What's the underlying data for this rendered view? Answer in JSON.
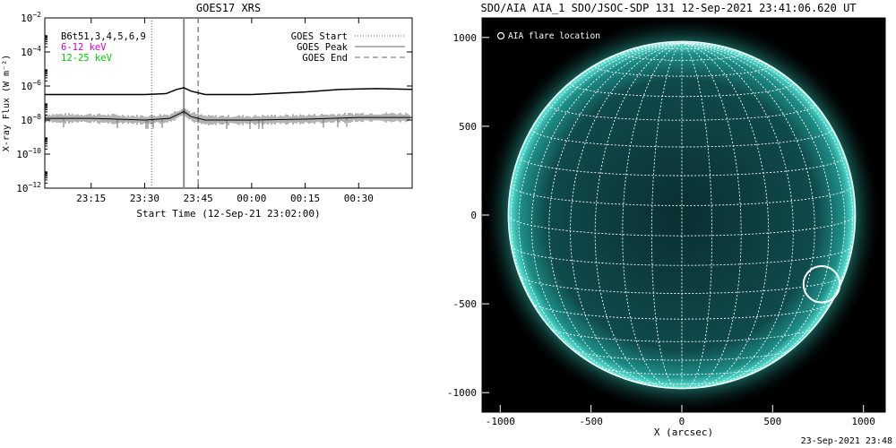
{
  "timestamp": "23-Sep-2021 23:48",
  "chart_data": [
    {
      "type": "line",
      "title": "GOES17 XRS",
      "xlabel": "Start Time (12-Sep-21 23:02:00)",
      "ylabel": "X-ray Flux (W m⁻²)",
      "y_scale": "log",
      "ylim_exp": [
        -12,
        -2
      ],
      "y_tick_exps": [
        -12,
        -10,
        -8,
        -6,
        -4,
        -2
      ],
      "x_ticks": [
        "23:15",
        "23:30",
        "23:45",
        "00:00",
        "00:15",
        "00:30"
      ],
      "legend_text": [
        "B6t51,3,4,5,6,9",
        "6-12 keV",
        "12-25 keV"
      ],
      "legend_colors": [
        "#000000",
        "#cc00cc",
        "#00cc00"
      ],
      "markers": [
        {
          "name": "GOES Start",
          "time": "23:32",
          "style": "dotted"
        },
        {
          "name": "GOES Peak",
          "time": "23:41",
          "style": "solid"
        },
        {
          "name": "GOES End",
          "time": "23:45",
          "style": "dashed"
        }
      ],
      "series": [
        {
          "name": "",
          "x": [
            "23:02",
            "23:15",
            "23:30",
            "23:36",
            "23:39",
            "23:41",
            "23:43",
            "23:47",
            "00:00",
            "00:15",
            "00:25",
            "00:35",
            "00:45"
          ],
          "y_exp": [
            -6.5,
            -6.5,
            -6.5,
            -6.45,
            -6.2,
            -6.1,
            -6.3,
            -6.5,
            -6.5,
            -6.35,
            -6.2,
            -6.15,
            -6.2
          ]
        },
        {
          "name": "",
          "x": [
            "23:02",
            "23:15",
            "23:30",
            "23:37",
            "23:39",
            "23:41",
            "23:43",
            "23:47",
            "00:00",
            "00:15",
            "00:30",
            "00:45"
          ],
          "y_exp": [
            -7.9,
            -7.9,
            -8.0,
            -7.9,
            -7.7,
            -7.5,
            -7.8,
            -8.0,
            -8.0,
            -7.95,
            -7.85,
            -7.85
          ]
        }
      ],
      "grid": false
    },
    {
      "type": "image",
      "title": "SDO/AIA AIA_1 SDO/JSOC-SDP 131 12-Sep-2021 23:41:06.620 UT",
      "xlabel": "X (arcsec)",
      "legend_text": "AIA flare location",
      "x_ticks": [
        "-1000",
        "-500",
        "0",
        "500",
        "1000"
      ],
      "y_ticks": [
        "1000",
        "500",
        "0",
        "-500",
        "-1000"
      ],
      "xlim": [
        -1100,
        1120
      ],
      "ylim": [
        -1110,
        1110
      ],
      "solar_radius_arcsec": 955,
      "flare_location": {
        "x": 770,
        "y": -390,
        "radius": 100
      },
      "colors": {
        "disk": "#0b3a3a",
        "limb": "#35d9c8",
        "grid": "#ffffff",
        "background": "#000000"
      },
      "grid": true
    }
  ]
}
